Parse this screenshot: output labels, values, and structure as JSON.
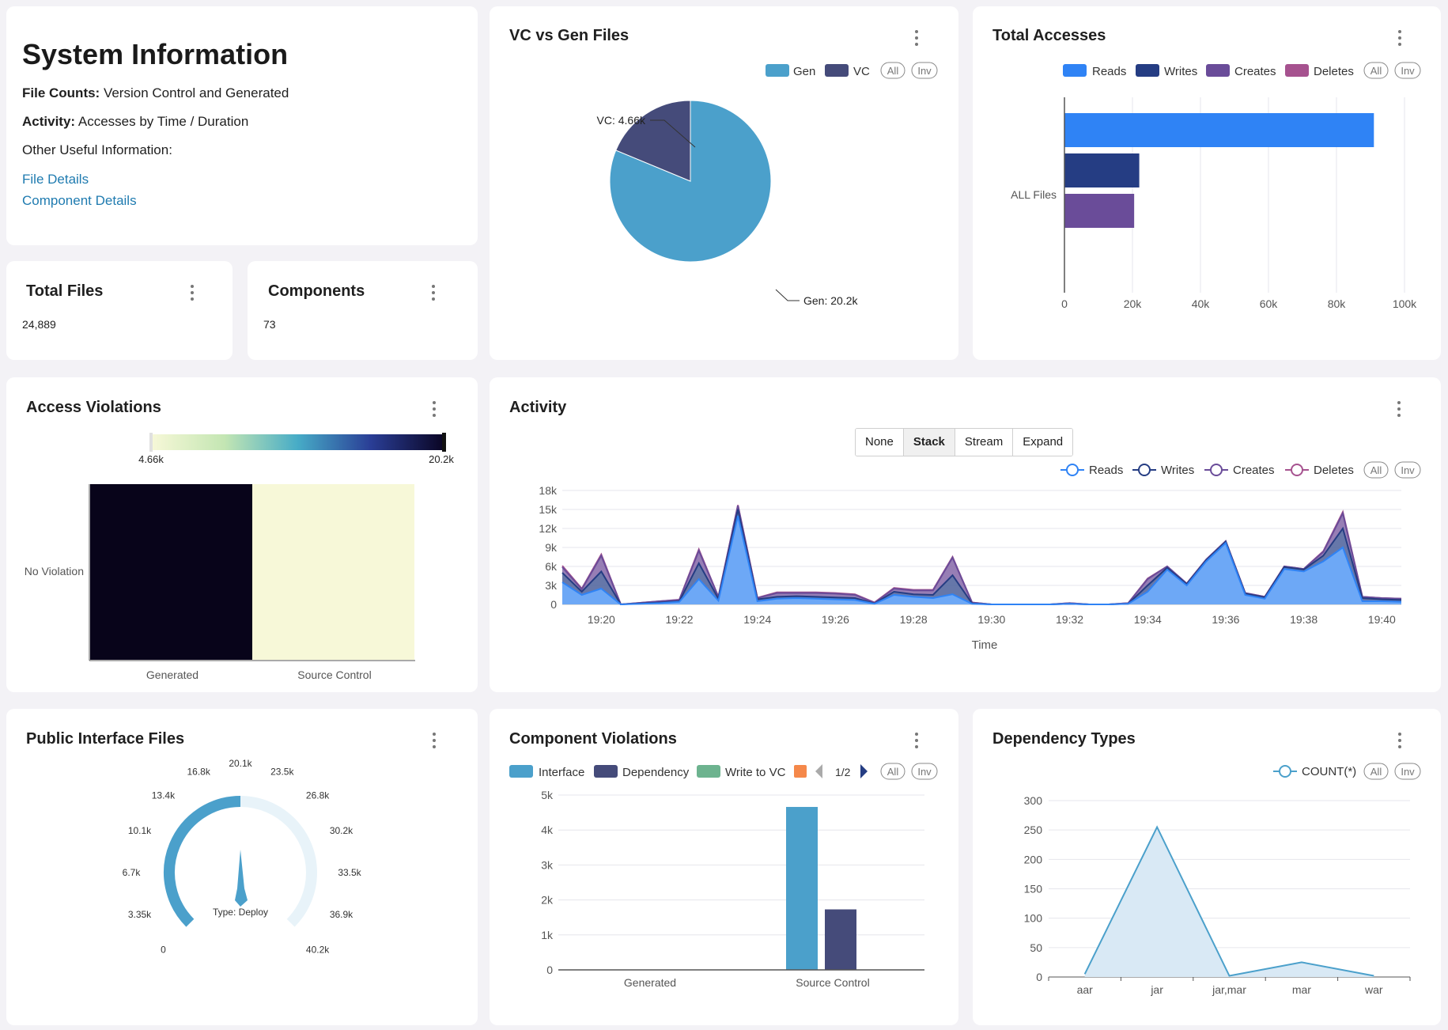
{
  "system_info": {
    "title": "System Information",
    "file_counts_label": "File Counts:",
    "file_counts_value": "Version Control and Generated",
    "activity_label": "Activity:",
    "activity_value": "Accesses by Time / Duration",
    "other_label": "Other Useful Information:",
    "links": [
      "File Details",
      "Component Details"
    ]
  },
  "total_files": {
    "title": "Total Files",
    "value": "24,889"
  },
  "components": {
    "title": "Components",
    "value": "73"
  },
  "vc_gen": {
    "title": "VC vs Gen Files",
    "legend": [
      {
        "label": "Gen",
        "color": "#4ba0cb"
      },
      {
        "label": "VC",
        "color": "#454b7a"
      }
    ],
    "legend_all": "All",
    "legend_inv": "Inv",
    "labels": {
      "vc": "VC: 4.66k",
      "gen": "Gen: 20.2k"
    }
  },
  "total_accesses": {
    "title": "Total Accesses",
    "legend": [
      {
        "label": "Reads",
        "color": "#2f83f5"
      },
      {
        "label": "Writes",
        "color": "#253d83"
      },
      {
        "label": "Creates",
        "color": "#6a4c99"
      },
      {
        "label": "Deletes",
        "color": "#a6528f"
      }
    ],
    "legend_all": "All",
    "legend_inv": "Inv",
    "category_label": "ALL Files",
    "x_ticks": [
      "0",
      "20k",
      "40k",
      "60k",
      "80k",
      "100k"
    ]
  },
  "access_violations": {
    "title": "Access Violations",
    "scale_min": "4.66k",
    "scale_max": "20.2k",
    "row_label": "No Violation",
    "col_labels": [
      "Generated",
      "Source Control"
    ]
  },
  "activity": {
    "title": "Activity",
    "modes": [
      "None",
      "Stack",
      "Stream",
      "Expand"
    ],
    "active_mode": "Stack",
    "legend": [
      {
        "label": "Reads",
        "color": "#2f83f5"
      },
      {
        "label": "Writes",
        "color": "#253d83"
      },
      {
        "label": "Creates",
        "color": "#6a4c99"
      },
      {
        "label": "Deletes",
        "color": "#a6528f"
      }
    ],
    "legend_all": "All",
    "legend_inv": "Inv",
    "y_ticks": [
      "18k",
      "15k",
      "12k",
      "9k",
      "6k",
      "3k",
      "0"
    ],
    "x_ticks": [
      "19:20",
      "19:22",
      "19:24",
      "19:26",
      "19:28",
      "19:30",
      "19:32",
      "19:34",
      "19:36",
      "19:38",
      "19:40"
    ],
    "x_title": "Time"
  },
  "public_interface": {
    "title": "Public Interface Files",
    "ticks": [
      "0",
      "3.35k",
      "6.7k",
      "10.1k",
      "13.4k",
      "16.8k",
      "20.1k",
      "23.5k",
      "26.8k",
      "30.2k",
      "33.5k",
      "36.9k",
      "40.2k"
    ],
    "center_label": "Type: Deploy"
  },
  "component_violations": {
    "title": "Component Violations",
    "legend": [
      {
        "label": "Interface",
        "color": "#4ba0cb"
      },
      {
        "label": "Dependency",
        "color": "#454b7a"
      },
      {
        "label": "Write to VC",
        "color": "#6db38f"
      },
      {
        "label": "",
        "color": "#f5884a"
      }
    ],
    "pager": "1/2",
    "legend_all": "All",
    "legend_inv": "Inv",
    "y_ticks": [
      "5k",
      "4k",
      "3k",
      "2k",
      "1k",
      "0"
    ],
    "x_labels": [
      "Generated",
      "Source Control"
    ]
  },
  "dependency_types": {
    "title": "Dependency Types",
    "legend_label": "COUNT(*)",
    "legend_all": "All",
    "legend_inv": "Inv",
    "y_ticks": [
      "300",
      "250",
      "200",
      "150",
      "100",
      "50",
      "0"
    ]
  },
  "chart_data": [
    {
      "type": "pie",
      "title": "VC vs Gen Files",
      "categories": [
        "Gen",
        "VC"
      ],
      "values": [
        20200,
        4660
      ]
    },
    {
      "type": "bar",
      "title": "Total Accesses",
      "orientation": "horizontal",
      "categories": [
        "ALL Files"
      ],
      "series": [
        {
          "name": "Reads",
          "values": [
            91000
          ]
        },
        {
          "name": "Writes",
          "values": [
            22000
          ]
        },
        {
          "name": "Creates",
          "values": [
            20500
          ]
        },
        {
          "name": "Deletes",
          "values": [
            0
          ]
        }
      ],
      "xlim": [
        0,
        100000
      ]
    },
    {
      "type": "heatmap",
      "title": "Access Violations",
      "x": [
        "Generated",
        "Source Control"
      ],
      "y": [
        "No Violation"
      ],
      "values": [
        [
          20200,
          4660
        ]
      ],
      "range": [
        4660,
        20200
      ]
    },
    {
      "type": "area",
      "title": "Activity",
      "stacked": true,
      "xlabel": "Time",
      "x": [
        "19:19",
        "19:19:30",
        "19:20",
        "19:20:30",
        "19:21",
        "19:21:30",
        "19:22",
        "19:22:30",
        "19:23",
        "19:23:30",
        "19:24",
        "19:24:30",
        "19:25",
        "19:25:30",
        "19:26",
        "19:26:30",
        "19:27",
        "19:27:30",
        "19:28",
        "19:28:30",
        "19:29",
        "19:29:30",
        "19:30",
        "19:30:30",
        "19:31",
        "19:31:30",
        "19:32",
        "19:32:30",
        "19:33",
        "19:33:30",
        "19:34",
        "19:34:30",
        "19:35",
        "19:35:30",
        "19:36",
        "19:36:30",
        "19:37",
        "19:37:30",
        "19:38",
        "19:38:30",
        "19:39",
        "19:39:30",
        "19:40",
        "19:40:30"
      ],
      "series": [
        {
          "name": "Reads",
          "values": [
            3500,
            1500,
            2500,
            0,
            100,
            200,
            400,
            4000,
            600,
            14000,
            500,
            900,
            1000,
            900,
            800,
            700,
            100,
            1500,
            1200,
            1000,
            1600,
            100,
            0,
            0,
            0,
            0,
            100,
            0,
            0,
            100,
            2000,
            5500,
            3000,
            6800,
            9700,
            1500,
            900,
            5600,
            5200,
            6800,
            9000,
            500,
            500,
            400
          ]
        },
        {
          "name": "Writes",
          "values": [
            1500,
            500,
            2700,
            0,
            50,
            100,
            100,
            2500,
            300,
            1000,
            300,
            300,
            300,
            300,
            300,
            300,
            50,
            500,
            400,
            500,
            3000,
            50,
            0,
            0,
            0,
            0,
            0,
            0,
            0,
            0,
            1000,
            300,
            200,
            200,
            200,
            200,
            200,
            300,
            300,
            900,
            3000,
            500,
            300,
            300
          ]
        },
        {
          "name": "Creates",
          "values": [
            900,
            400,
            2500,
            0,
            100,
            200,
            200,
            2000,
            300,
            600,
            200,
            600,
            500,
            600,
            600,
            500,
            100,
            500,
            600,
            700,
            2800,
            150,
            0,
            0,
            0,
            0,
            100,
            0,
            0,
            100,
            1000,
            200,
            100,
            100,
            100,
            100,
            100,
            100,
            100,
            600,
            2400,
            200,
            200,
            200
          ]
        },
        {
          "name": "Deletes",
          "values": [
            200,
            100,
            200,
            0,
            0,
            0,
            50,
            200,
            0,
            100,
            50,
            100,
            100,
            100,
            100,
            100,
            50,
            100,
            100,
            100,
            100,
            0,
            0,
            0,
            0,
            0,
            0,
            0,
            0,
            0,
            100,
            0,
            0,
            0,
            0,
            0,
            0,
            0,
            0,
            100,
            200,
            0,
            0,
            0
          ]
        }
      ],
      "ylim": [
        0,
        18000
      ]
    },
    {
      "type": "gauge",
      "title": "Public Interface Files",
      "value": 20100,
      "min": 0,
      "max": 40200,
      "label": "Type: Deploy"
    },
    {
      "type": "bar",
      "title": "Component Violations",
      "categories": [
        "Generated",
        "Source Control"
      ],
      "series": [
        {
          "name": "Interface",
          "values": [
            0,
            4660
          ]
        },
        {
          "name": "Dependency",
          "values": [
            0,
            1730
          ]
        },
        {
          "name": "Write to VC",
          "values": [
            0,
            0
          ]
        }
      ],
      "ylim": [
        0,
        5000
      ]
    },
    {
      "type": "area",
      "title": "Dependency Types",
      "categories": [
        "aar",
        "jar",
        "jar,mar",
        "mar",
        "war"
      ],
      "series": [
        {
          "name": "COUNT(*)",
          "values": [
            5,
            255,
            2,
            25,
            2
          ]
        }
      ],
      "ylim": [
        0,
        300
      ]
    }
  ]
}
